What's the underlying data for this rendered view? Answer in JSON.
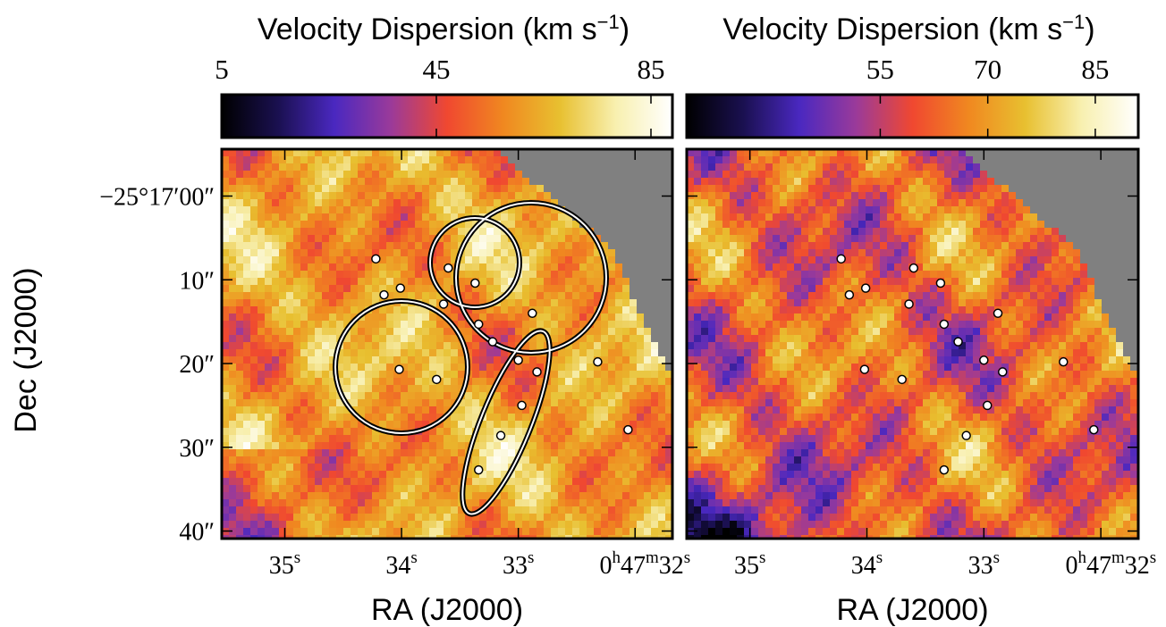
{
  "chart_data": [
    {
      "type": "map",
      "title": "Velocity Dispersion (km s−1)",
      "colormap": [
        "#000000",
        "#1a1050",
        "#4a28c0",
        "#9a3a9a",
        "#f04830",
        "#f08820",
        "#e8c030",
        "#f8f0b0",
        "#ffffff"
      ],
      "clim": [
        5,
        89
      ],
      "cticks": [
        5,
        45,
        85
      ],
      "xlabel": "RA (J2000)",
      "ylabel": "Dec (J2000)",
      "xlim": [
        35.54,
        31.68
      ],
      "ylim": [
        -5.6,
        40.9
      ],
      "xticks": [
        {
          "value": 35,
          "label": "35s"
        },
        {
          "value": 34,
          "label": "34s"
        },
        {
          "value": 33,
          "label": "33s"
        },
        {
          "value": 32,
          "label": "0h47m32s"
        }
      ],
      "yticks": [
        {
          "value": 0,
          "label": "−25°17′00″"
        },
        {
          "value": 10,
          "label": "10″"
        },
        {
          "value": 20,
          "label": "20″"
        },
        {
          "value": 30,
          "label": "30″"
        },
        {
          "value": 40,
          "label": "40″"
        }
      ],
      "x": [
        34.22,
        34.01,
        34.15,
        33.6,
        33.37,
        33.64,
        32.88,
        33.34,
        33.22,
        33.0,
        32.84,
        34.02,
        33.7,
        32.32,
        32.97,
        33.15,
        33.34,
        32.06
      ],
      "y": [
        7.5,
        11.0,
        11.8,
        8.6,
        10.4,
        12.9,
        14.0,
        15.3,
        17.4,
        19.6,
        21.0,
        20.7,
        21.9,
        19.8,
        25.0,
        28.6,
        32.7,
        27.9
      ]
    },
    {
      "type": "map",
      "title": "Velocity Dispersion (km s−1)",
      "colormap": [
        "#000000",
        "#1a1050",
        "#4a28c0",
        "#9a3a9a",
        "#f04830",
        "#f08820",
        "#e8c030",
        "#f8f0b0",
        "#ffffff"
      ],
      "clim": [
        28,
        91
      ],
      "cticks": [
        55,
        70,
        85
      ],
      "xlabel": "RA (J2000)",
      "xlim": [
        35.54,
        31.68
      ],
      "ylim": [
        -5.6,
        40.9
      ],
      "xticks": [
        {
          "value": 35,
          "label": "35s"
        },
        {
          "value": 34,
          "label": "34s"
        },
        {
          "value": 33,
          "label": "33s"
        },
        {
          "value": 32,
          "label": "0h47m32s"
        }
      ],
      "x": [
        34.22,
        34.01,
        34.15,
        33.6,
        33.37,
        33.64,
        32.88,
        33.34,
        33.22,
        33.0,
        32.84,
        34.02,
        33.7,
        32.32,
        32.97,
        33.15,
        33.34,
        32.06
      ],
      "y": [
        7.5,
        11.0,
        11.8,
        8.6,
        10.4,
        12.9,
        14.0,
        15.3,
        17.4,
        19.6,
        21.0,
        20.7,
        21.9,
        19.8,
        25.0,
        28.6,
        32.7,
        27.9
      ]
    }
  ]
}
